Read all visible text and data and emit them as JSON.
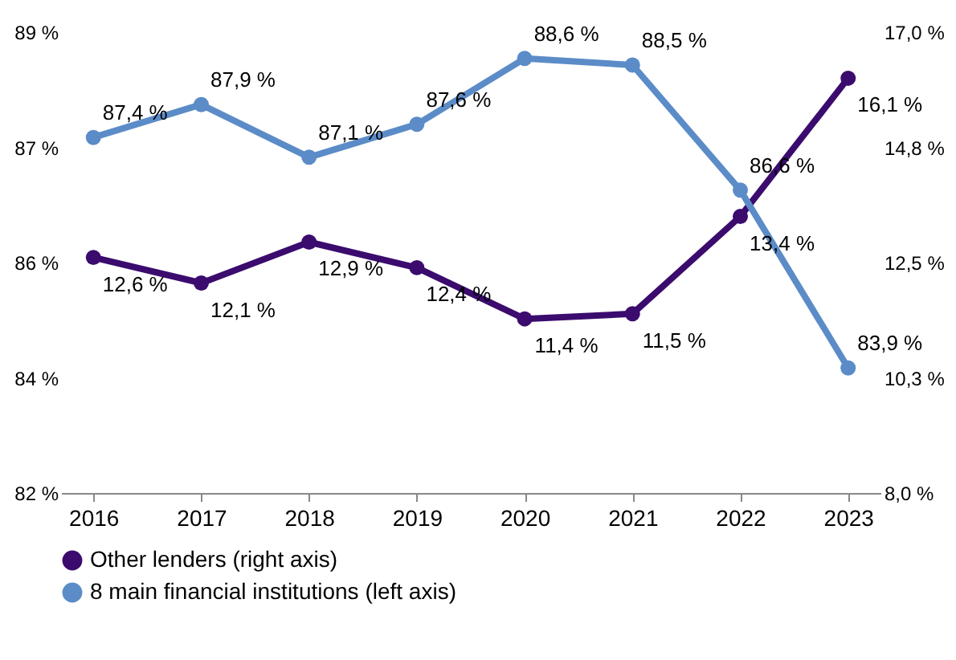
{
  "chart_data": {
    "type": "line",
    "categories": [
      "2016",
      "2017",
      "2018",
      "2019",
      "2020",
      "2021",
      "2022",
      "2023"
    ],
    "series": [
      {
        "name": "Other lenders (right axis)",
        "color": "#3b0b6e",
        "axis": "y2",
        "values": [
          12.6,
          12.1,
          12.9,
          12.4,
          11.4,
          11.5,
          13.4,
          16.1
        ],
        "value_labels": [
          "12,6 %",
          "12,1 %",
          "12,9 %",
          "12,4 %",
          "11,4 %",
          "11,5 %",
          "13,4 %",
          "16,1 %"
        ]
      },
      {
        "name": "8 main financial institutions (left axis)",
        "color": "#5b8cc8",
        "values": [
          87.4,
          87.9,
          87.1,
          87.6,
          88.6,
          88.5,
          86.6,
          83.9
        ],
        "value_labels": [
          "87,4 %",
          "87,9 %",
          "87,1 %",
          "87,6 %",
          "88,6 %",
          "88,5 %",
          "86,6 %",
          "83,9 %"
        ]
      }
    ],
    "ylim": [
      82,
      89
    ],
    "yticks": [
      {
        "value": 82,
        "label": "82 %"
      },
      {
        "value": 83.75,
        "label": "84 %"
      },
      {
        "value": 85.5,
        "label": "86 %"
      },
      {
        "value": 87.25,
        "label": "87 %"
      },
      {
        "value": 89,
        "label": "89 %"
      }
    ],
    "y2lim": [
      8,
      17
    ],
    "y2ticks": [
      {
        "value": 8,
        "label": "8,0 %"
      },
      {
        "value": 10.25,
        "label": "10,3 %"
      },
      {
        "value": 12.5,
        "label": "12,5 %"
      },
      {
        "value": 14.75,
        "label": "14,8 %"
      },
      {
        "value": 17,
        "label": "17,0 %"
      }
    ],
    "grid": false,
    "legend": "bottom",
    "marker": "circle",
    "line_style": "solid"
  }
}
